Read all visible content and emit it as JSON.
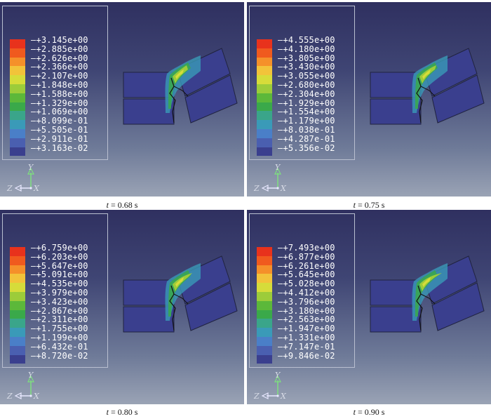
{
  "panels": [
    {
      "caption_var": "t",
      "caption_value": " = 0.68 s",
      "legend": [
        "+3.145e+00",
        "+2.885e+00",
        "+2.626e+00",
        "+2.366e+00",
        "+2.107e+00",
        "+1.848e+00",
        "+1.588e+00",
        "+1.329e+00",
        "+1.069e+00",
        "+8.099e-01",
        "+5.505e-01",
        "+2.911e-01",
        "+3.163e-02"
      ]
    },
    {
      "caption_var": "t",
      "caption_value": " = 0.75 s",
      "legend": [
        "+4.555e+00",
        "+4.180e+00",
        "+3.805e+00",
        "+3.430e+00",
        "+3.055e+00",
        "+2.680e+00",
        "+2.304e+00",
        "+1.929e+00",
        "+1.554e+00",
        "+1.179e+00",
        "+8.038e-01",
        "+4.287e-01",
        "+5.356e-02"
      ]
    },
    {
      "caption_var": "t",
      "caption_value": " = 0.80 s",
      "legend": [
        "+6.759e+00",
        "+6.203e+00",
        "+5.647e+00",
        "+5.091e+00",
        "+4.535e+00",
        "+3.979e+00",
        "+3.423e+00",
        "+2.867e+00",
        "+2.311e+00",
        "+1.755e+00",
        "+1.199e+00",
        "+6.432e-01",
        "+8.720e-02"
      ]
    },
    {
      "caption_var": "t",
      "caption_value": " = 0.90 s",
      "legend": [
        "+7.493e+00",
        "+6.877e+00",
        "+6.261e+00",
        "+5.645e+00",
        "+5.028e+00",
        "+4.412e+00",
        "+3.796e+00",
        "+3.180e+00",
        "+2.563e+00",
        "+1.947e+00",
        "+1.331e+00",
        "+7.147e-01",
        "+9.846e-02"
      ]
    }
  ],
  "triad": {
    "y": "Y",
    "z": "Z",
    "x": "X"
  },
  "colors": [
    "#e8321c",
    "#f05a1e",
    "#f5902a",
    "#f2c33a",
    "#d6dc3a",
    "#9ccc3a",
    "#5cb83a",
    "#3aa94a",
    "#3aa58a",
    "#3a9ab8",
    "#4a7fc8",
    "#4a5fb0",
    "#3a3f8e"
  ]
}
